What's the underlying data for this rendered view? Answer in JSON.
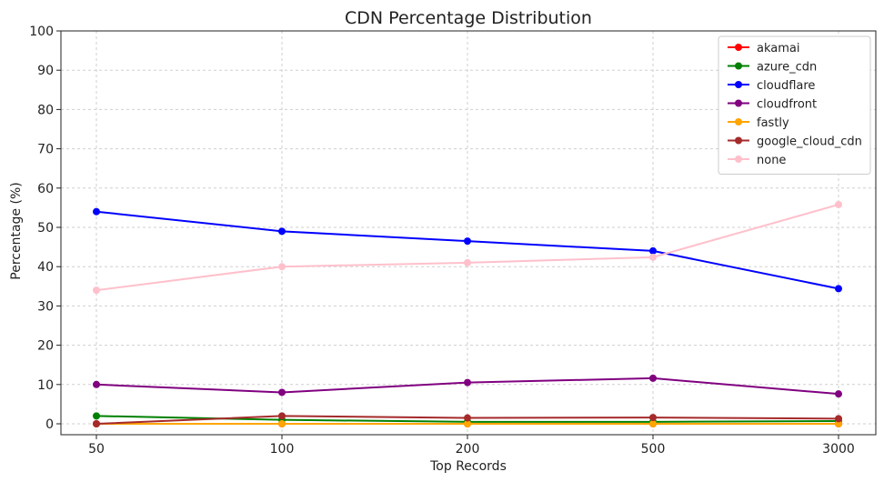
{
  "chart_data": {
    "type": "line",
    "title": "CDN Percentage Distribution",
    "xlabel": "Top Records",
    "ylabel": "Percentage (%)",
    "categories": [
      "50",
      "100",
      "200",
      "500",
      "3000"
    ],
    "ylim": [
      0,
      100
    ],
    "yticks": [
      0,
      10,
      20,
      30,
      40,
      50,
      60,
      70,
      80,
      90,
      100
    ],
    "grid": true,
    "legend_position": "top-right",
    "series": [
      {
        "name": "akamai",
        "color": "#ff0000",
        "values": [
          0,
          0,
          0,
          0,
          0
        ]
      },
      {
        "name": "azure_cdn",
        "color": "#008000",
        "values": [
          2,
          1,
          0.5,
          0.5,
          0.7
        ]
      },
      {
        "name": "cloudflare",
        "color": "#0000ff",
        "values": [
          54,
          49,
          46.5,
          44,
          34.4
        ]
      },
      {
        "name": "cloudfront",
        "color": "#800080",
        "values": [
          10,
          8,
          10.5,
          11.6,
          7.6
        ]
      },
      {
        "name": "fastly",
        "color": "#ffa500",
        "values": [
          0,
          0,
          0,
          0,
          0
        ]
      },
      {
        "name": "google_cloud_cdn",
        "color": "#a52a2a",
        "values": [
          0,
          2,
          1.5,
          1.6,
          1.3
        ]
      },
      {
        "name": "none",
        "color": "#ffc0cb",
        "values": [
          34,
          40,
          41,
          42.4,
          55.8
        ]
      }
    ]
  }
}
